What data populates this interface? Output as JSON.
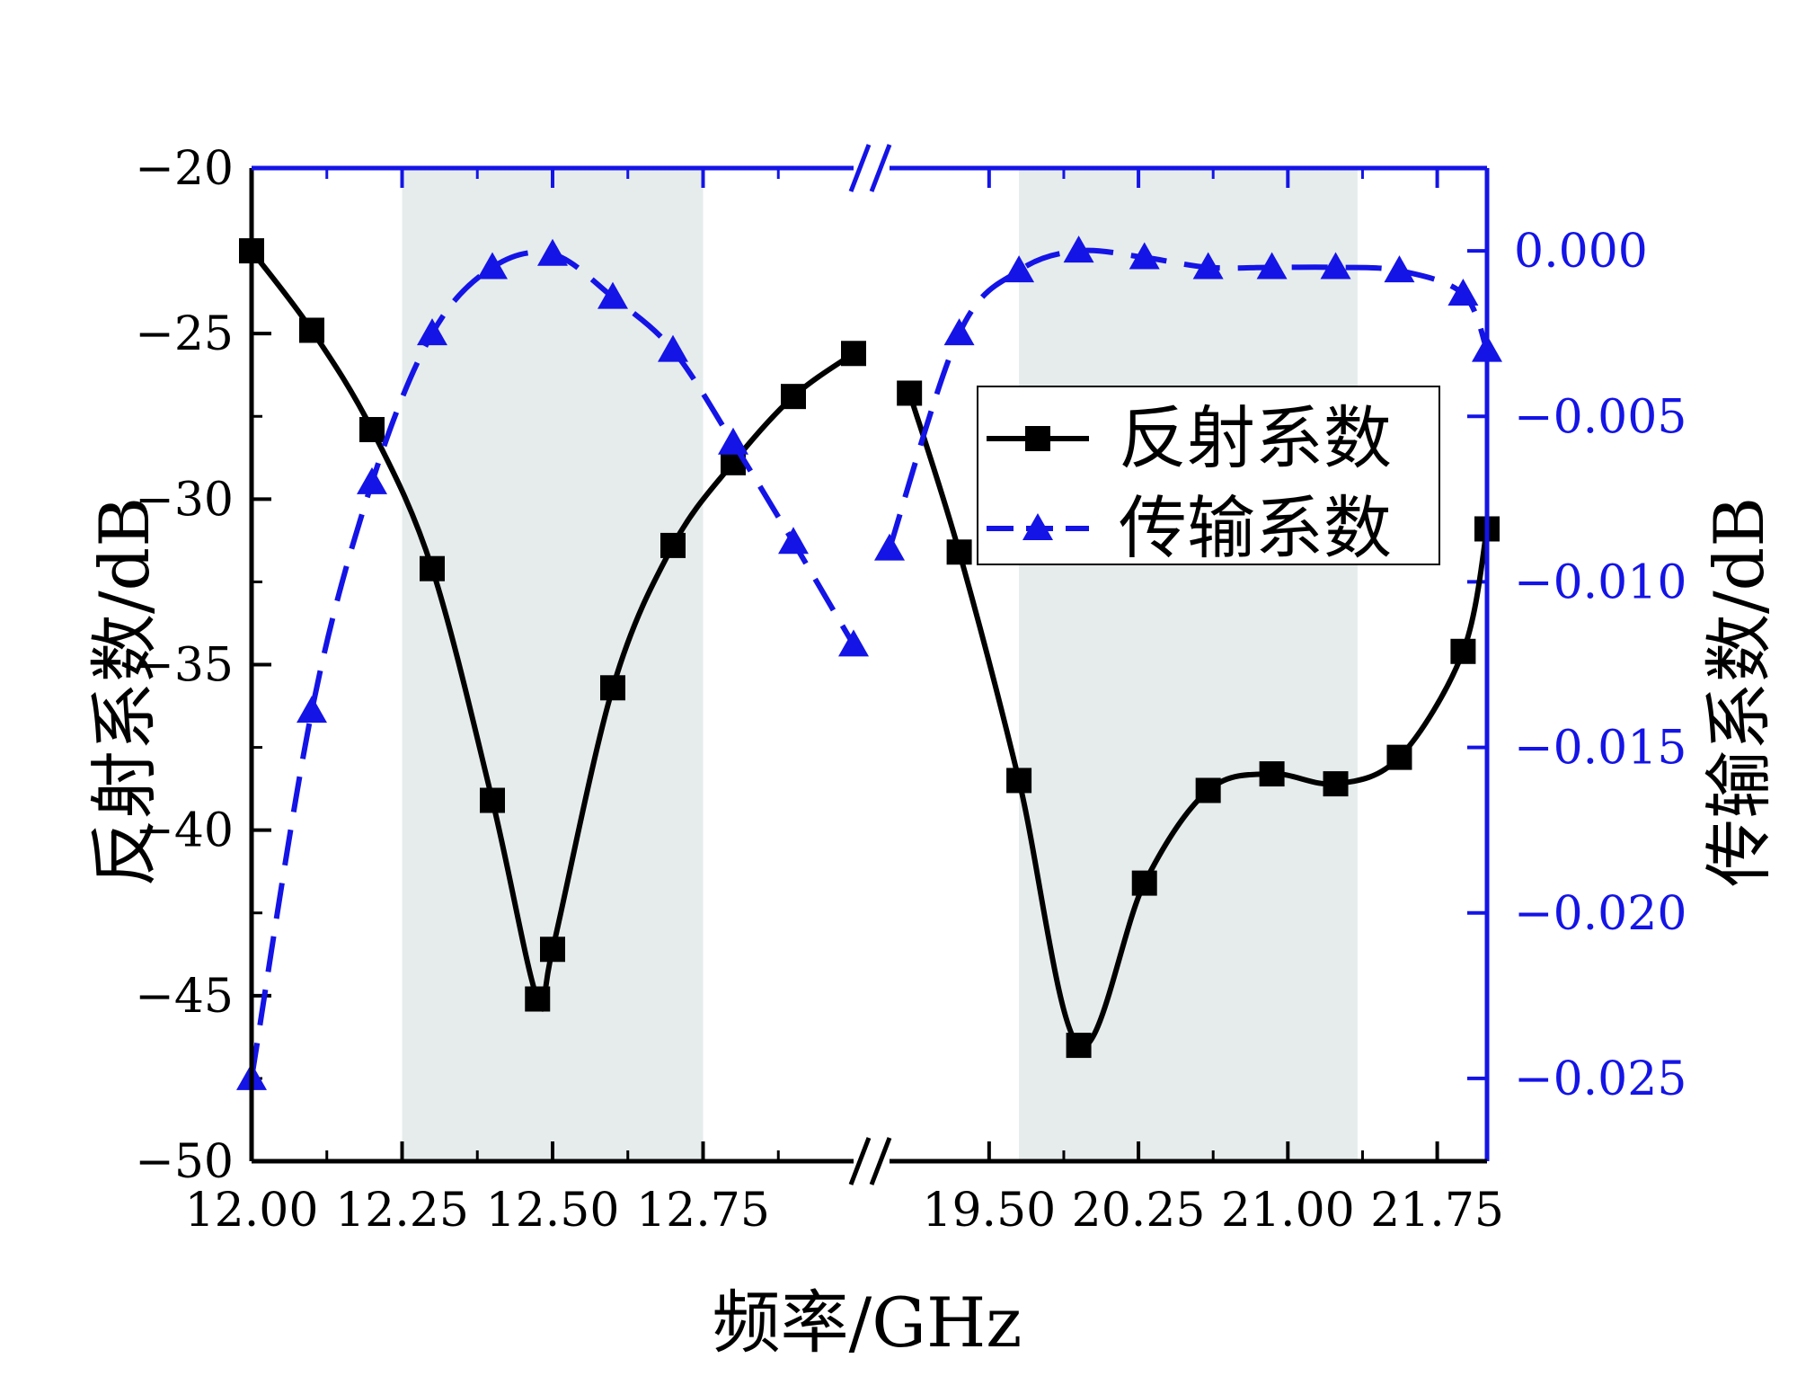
{
  "chart_data": {
    "type": "line",
    "colors": {
      "reflection": "#000000",
      "transmission": "#1414e6",
      "band": "#e6ecec"
    },
    "x_segments": [
      {
        "range": [
          12.0,
          13.0
        ],
        "ticks": [
          "12.00",
          "12.25",
          "12.50",
          "12.75"
        ]
      },
      {
        "range": [
          19.0,
          22.0
        ],
        "ticks": [
          "19.50",
          "20.25",
          "21.00",
          "21.75"
        ]
      }
    ],
    "x_break": true,
    "xlabel": "频率/GHz",
    "ylabel_left": "反射系数/dB",
    "ylabel_right": "传输系数/dB",
    "ylim_left": [
      -50,
      -20
    ],
    "yticks_left": [
      "−20",
      "−25",
      "−30",
      "−35",
      "−40",
      "−45",
      "−50"
    ],
    "ylim_right": [
      -0.0275,
      0.0025
    ],
    "yticks_right": [
      "0.000",
      "−0.005",
      "−0.010",
      "−0.015",
      "−0.020",
      "−0.025"
    ],
    "shaded_bands": [
      [
        12.25,
        12.75
      ],
      [
        19.65,
        21.35
      ]
    ],
    "legend": {
      "position": "right",
      "entries": [
        "反射系数",
        "传输系数"
      ]
    },
    "series": [
      {
        "name": "反射系数",
        "axis": "left",
        "line": "solid",
        "marker": "square",
        "segments": [
          [
            [
              12.0,
              -22.5
            ],
            [
              12.1,
              -24.9
            ],
            [
              12.2,
              -27.9
            ],
            [
              12.3,
              -32.1
            ],
            [
              12.4,
              -39.1
            ],
            [
              12.475,
              -45.1
            ],
            [
              12.5,
              -43.6
            ],
            [
              12.6,
              -35.7
            ],
            [
              12.7,
              -31.4
            ],
            [
              12.8,
              -28.9
            ],
            [
              12.9,
              -26.9
            ],
            [
              13.0,
              -25.6
            ]
          ],
          [
            [
              19.1,
              -26.8
            ],
            [
              19.35,
              -31.6
            ],
            [
              19.65,
              -38.5
            ],
            [
              19.95,
              -46.5
            ],
            [
              20.28,
              -41.6
            ],
            [
              20.6,
              -38.8
            ],
            [
              20.92,
              -38.3
            ],
            [
              21.24,
              -38.6
            ],
            [
              21.56,
              -37.8
            ],
            [
              21.88,
              -34.6
            ],
            [
              22.0,
              -30.9
            ]
          ]
        ]
      },
      {
        "name": "传输系数",
        "axis": "left",
        "line": "dashed",
        "marker": "triangle",
        "segments": [
          [
            [
              12.0,
              -47.5
            ],
            [
              12.1,
              -36.4
            ],
            [
              12.2,
              -29.5
            ],
            [
              12.3,
              -25.0
            ],
            [
              12.4,
              -23.0
            ],
            [
              12.5,
              -22.6
            ],
            [
              12.6,
              -23.9
            ],
            [
              12.7,
              -25.5
            ],
            [
              12.8,
              -28.3
            ],
            [
              12.9,
              -31.3
            ],
            [
              13.0,
              -34.4
            ]
          ],
          [
            [
              19.0,
              -31.5
            ],
            [
              19.35,
              -25.0
            ],
            [
              19.65,
              -23.1
            ],
            [
              19.95,
              -22.5
            ],
            [
              20.28,
              -22.7
            ],
            [
              20.6,
              -23.0
            ],
            [
              20.92,
              -23.0
            ],
            [
              21.24,
              -23.0
            ],
            [
              21.56,
              -23.1
            ],
            [
              21.88,
              -23.8
            ],
            [
              22.0,
              -25.5
            ]
          ]
        ]
      }
    ]
  }
}
